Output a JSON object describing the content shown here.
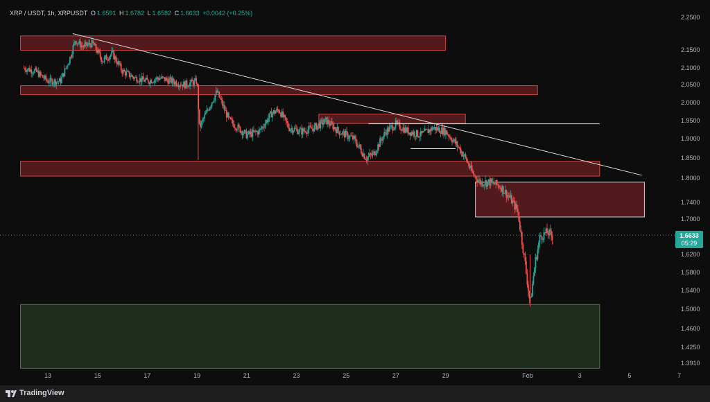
{
  "header": {
    "symbol": "XRP / USDT, 1h, XRPUSDT",
    "open_key": "O",
    "open": "1.6591",
    "high_key": "H",
    "high": "1.6782",
    "low_key": "L",
    "low": "1.6582",
    "close_key": "C",
    "close": "1.6633",
    "change": "+0.0042 (+0.25%)"
  },
  "last_price": {
    "price": "1.6633",
    "countdown": "05:29"
  },
  "branding": {
    "label": "TradingView"
  },
  "colors": {
    "background": "#0d0d0d",
    "up": "#26a69a",
    "down": "#ef5350",
    "resistance_zone": "#ef5350",
    "support_zone": "#4caf50"
  },
  "chart_data": {
    "type": "candlestick",
    "symbol": "XRPUSDT",
    "timeframe": "1h",
    "y_axis": {
      "ticks": [
        "2.2500",
        "2.1500",
        "2.1000",
        "2.0500",
        "2.0000",
        "1.9500",
        "1.9000",
        "1.8500",
        "1.8000",
        "1.7400",
        "1.7000",
        "1.6200",
        "1.5800",
        "1.5400",
        "1.5000",
        "1.4600",
        "1.4250",
        "1.3910"
      ],
      "range": [
        1.38,
        2.27
      ]
    },
    "x_axis": {
      "ticks": [
        "13",
        "15",
        "17",
        "19",
        "21",
        "23",
        "25",
        "27",
        "29",
        "Feb",
        "3",
        "5",
        "7"
      ]
    },
    "price_path": [
      [
        12.0,
        2.1
      ],
      [
        12.5,
        2.09
      ],
      [
        13.0,
        2.06
      ],
      [
        13.5,
        2.06
      ],
      [
        13.9,
        2.13
      ],
      [
        14.1,
        2.18
      ],
      [
        14.4,
        2.16
      ],
      [
        14.8,
        2.17
      ],
      [
        15.2,
        2.12
      ],
      [
        15.6,
        2.14
      ],
      [
        16.0,
        2.09
      ],
      [
        16.5,
        2.07
      ],
      [
        17.0,
        2.06
      ],
      [
        17.5,
        2.07
      ],
      [
        18.0,
        2.06
      ],
      [
        18.5,
        2.05
      ],
      [
        19.0,
        2.06
      ],
      [
        19.1,
        1.93
      ],
      [
        19.5,
        1.99
      ],
      [
        19.8,
        2.03
      ],
      [
        20.3,
        1.95
      ],
      [
        21.0,
        1.91
      ],
      [
        21.5,
        1.92
      ],
      [
        22.0,
        1.97
      ],
      [
        22.3,
        1.98
      ],
      [
        22.7,
        1.93
      ],
      [
        23.2,
        1.92
      ],
      [
        23.7,
        1.93
      ],
      [
        24.2,
        1.95
      ],
      [
        24.7,
        1.92
      ],
      [
        25.3,
        1.9
      ],
      [
        25.8,
        1.85
      ],
      [
        26.1,
        1.86
      ],
      [
        26.6,
        1.92
      ],
      [
        27.0,
        1.94
      ],
      [
        27.5,
        1.92
      ],
      [
        28.0,
        1.91
      ],
      [
        28.5,
        1.93
      ],
      [
        29.0,
        1.92
      ],
      [
        29.5,
        1.88
      ],
      [
        29.8,
        1.85
      ],
      [
        30.1,
        1.81
      ],
      [
        30.4,
        1.79
      ],
      [
        30.8,
        1.79
      ],
      [
        31.2,
        1.78
      ],
      [
        31.6,
        1.75
      ],
      [
        31.9,
        1.72
      ],
      [
        32.2,
        1.6
      ],
      [
        32.4,
        1.51
      ],
      [
        32.6,
        1.6
      ],
      [
        32.8,
        1.66
      ],
      [
        33.1,
        1.67
      ],
      [
        33.3,
        1.66
      ]
    ],
    "zones": [
      {
        "type": "resistance",
        "x": [
          11.9,
          29.0
        ],
        "y": [
          2.149,
          2.193
        ]
      },
      {
        "type": "resistance",
        "x": [
          11.9,
          32.7
        ],
        "y": [
          2.022,
          2.047
        ]
      },
      {
        "type": "resistance",
        "x": [
          23.9,
          29.8
        ],
        "y": [
          1.942,
          1.968
        ]
      },
      {
        "type": "resistance",
        "x": [
          11.9,
          35.2
        ],
        "y": [
          1.805,
          1.842
        ]
      },
      {
        "type": "resistance",
        "x": [
          30.2,
          37.0
        ],
        "y": [
          1.705,
          1.79
        ]
      },
      {
        "type": "support",
        "x": [
          11.9,
          35.2
        ],
        "y": [
          1.38,
          1.51
        ]
      }
    ],
    "lines": [
      {
        "type": "trendline",
        "points": [
          [
            14.0,
            2.2
          ],
          [
            36.9,
            1.807
          ]
        ]
      },
      {
        "type": "horizontal",
        "points": [
          [
            25.9,
            1.941
          ],
          [
            35.2,
            1.941
          ]
        ]
      },
      {
        "type": "horizontal",
        "points": [
          [
            27.6,
            1.874
          ],
          [
            29.4,
            1.874
          ]
        ]
      }
    ],
    "last_price": 1.6633
  }
}
